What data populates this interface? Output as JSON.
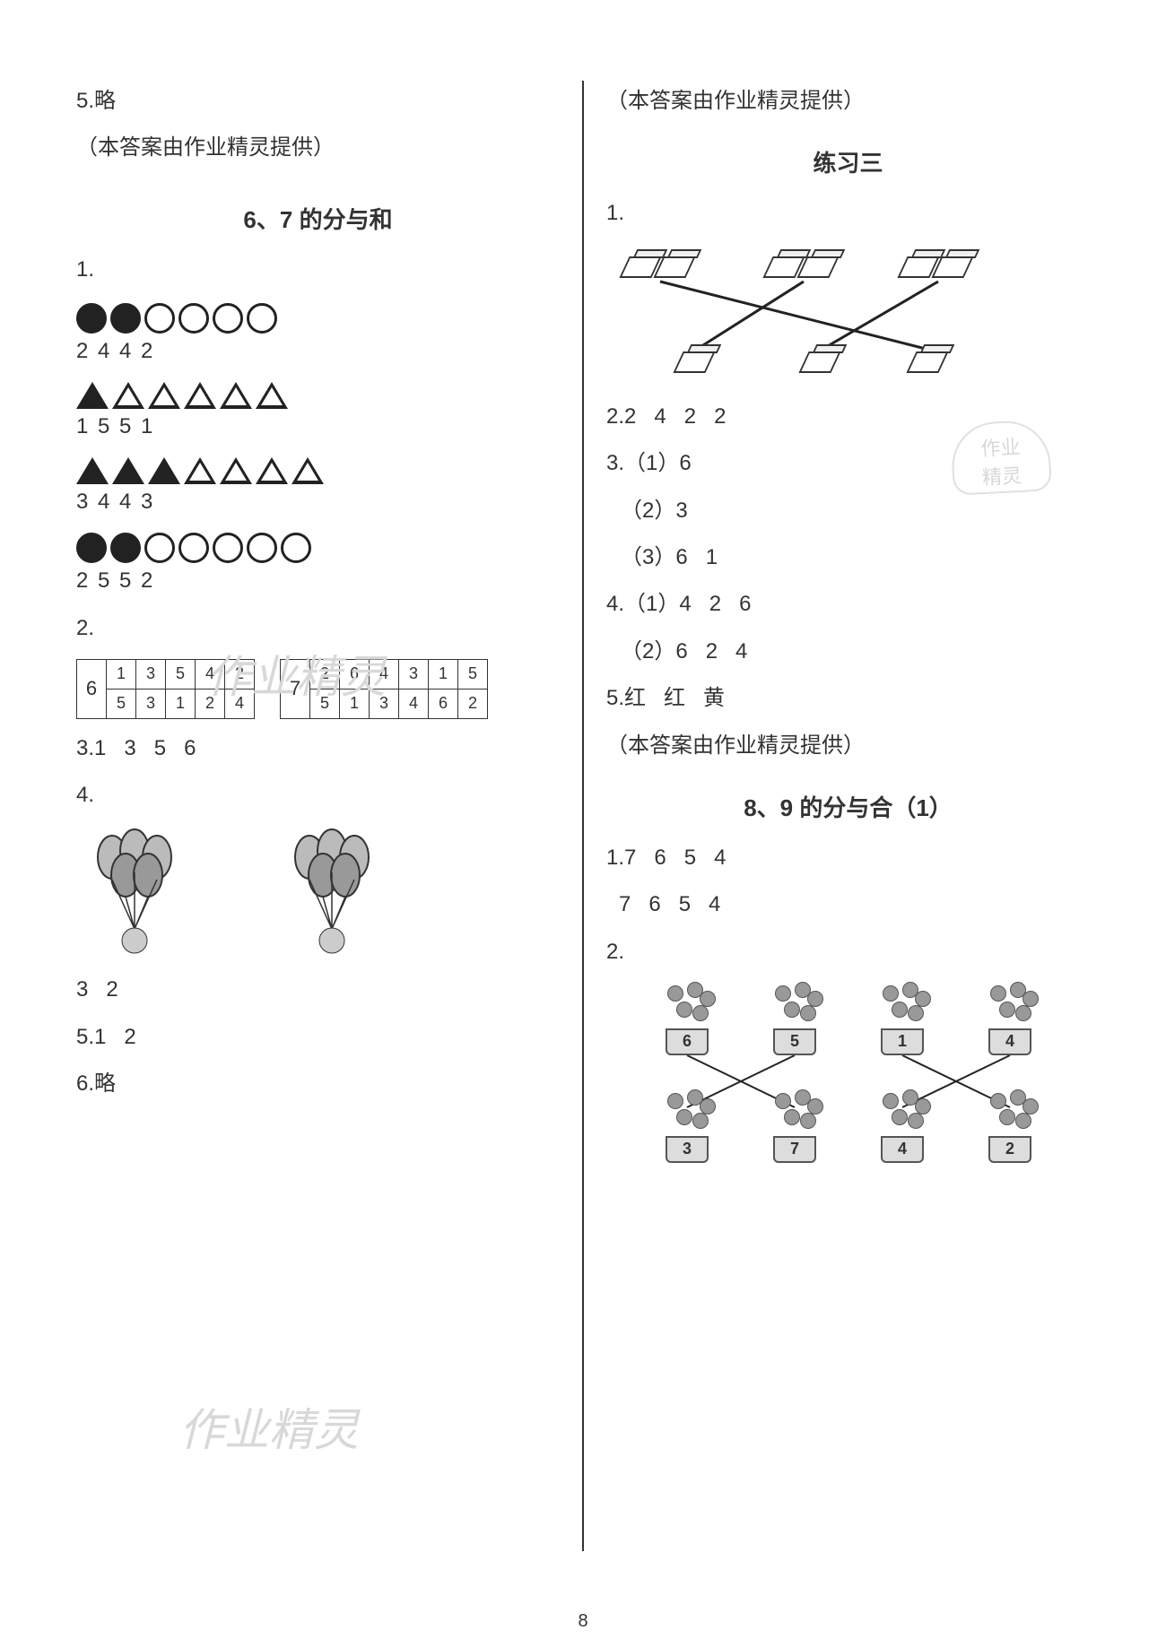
{
  "page_number": "8",
  "watermark_text": "作业精灵",
  "stamp_lines": [
    "作业",
    "精灵"
  ],
  "left": {
    "top_note": "5.略",
    "credit": "（本答案由作业精灵提供）",
    "section1_title": "6、7 的分与和",
    "q1_label": "1.",
    "row1": {
      "circles": [
        1,
        1,
        0,
        0,
        0,
        0
      ],
      "nums": "2   4   4   2"
    },
    "row2": {
      "tris": [
        1,
        0,
        0,
        0,
        0,
        0
      ],
      "nums": "1   5   5   1"
    },
    "row3": {
      "tris": [
        1,
        1,
        1,
        0,
        0,
        0,
        0
      ],
      "nums": "3   4   4   3"
    },
    "row4": {
      "circles": [
        1,
        1,
        0,
        0,
        0,
        0,
        0
      ],
      "nums": "2   5   5   2"
    },
    "q2_label": "2.",
    "table6": {
      "head": "6",
      "r1": [
        "1",
        "3",
        "5",
        "4",
        "2"
      ],
      "r2": [
        "5",
        "3",
        "1",
        "2",
        "4"
      ]
    },
    "table7": {
      "head": "7",
      "r1": [
        "2",
        "6",
        "4",
        "3",
        "1",
        "5"
      ],
      "r2": [
        "5",
        "1",
        "3",
        "4",
        "6",
        "2"
      ]
    },
    "q3": "3.1   3   5   6",
    "q4_label": "4.",
    "q4_nums": "3   2",
    "q5": "5.1   2",
    "q6": "6.略"
  },
  "right": {
    "credit1": "（本答案由作业精灵提供）",
    "section2_title": "练习三",
    "q1_label": "1.",
    "match": {
      "top_cubes": [
        2,
        2,
        2
      ],
      "bottom_cubes": [
        1,
        1,
        1
      ],
      "lines": [
        [
          0,
          2
        ],
        [
          1,
          0
        ],
        [
          2,
          1
        ]
      ]
    },
    "q2": "2.2   4   2   2",
    "q3_1": "3.（1）6",
    "q3_2": "（2）3",
    "q3_3": "（3）6   1",
    "q4_1": "4.（1）4   2   6",
    "q4_2": "（2）6   2   4",
    "q5": "5.红   红   黄",
    "credit2": "（本答案由作业精灵提供）",
    "section3_title": "8、9 的分与合（1）",
    "q1a": "1.7   6   5   4",
    "q1b": "7   6   5   4",
    "q2_label": "2.",
    "pots_top": [
      "6",
      "5",
      "1",
      "4"
    ],
    "pots_bottom": [
      "3",
      "7",
      "4",
      "2"
    ],
    "pot_lines": [
      [
        0,
        1
      ],
      [
        1,
        0
      ],
      [
        2,
        3
      ],
      [
        3,
        2
      ]
    ]
  },
  "colors": {
    "text": "#333333",
    "shape": "#222222",
    "watermark": "#d8d8d8",
    "border": "#333333",
    "pot_fill": "#dddddd",
    "flower_fill": "#999999"
  }
}
